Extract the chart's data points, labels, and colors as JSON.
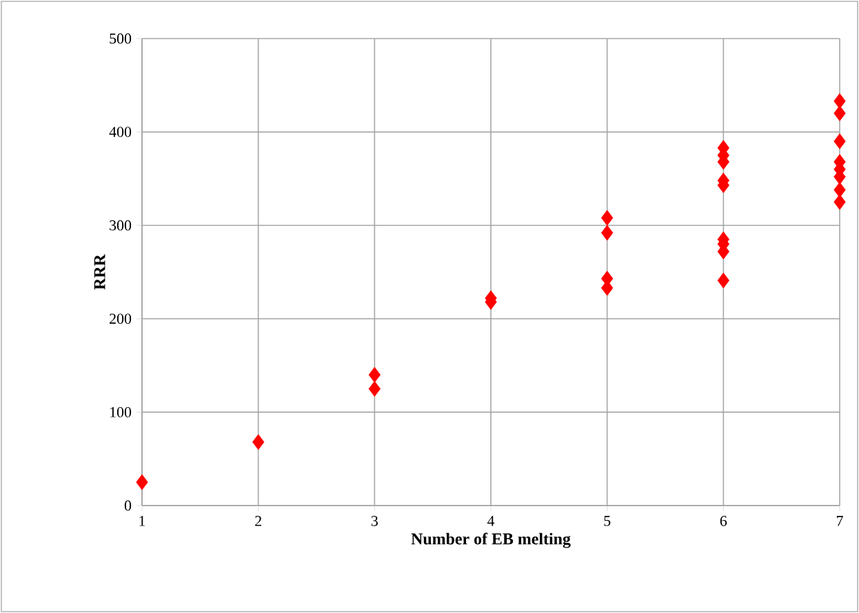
{
  "chart_data": {
    "type": "scatter",
    "xlabel": "Number of EB melting",
    "ylabel": "RRR",
    "x": [
      1,
      2,
      3,
      3,
      4,
      4,
      5,
      5,
      5,
      5,
      6,
      6,
      6,
      6,
      6,
      6,
      6,
      6,
      6,
      7,
      7,
      7,
      7,
      7,
      7,
      7,
      7
    ],
    "values": [
      25,
      68,
      140,
      125,
      222,
      218,
      308,
      292,
      243,
      233,
      383,
      375,
      368,
      348,
      343,
      285,
      280,
      272,
      241,
      433,
      420,
      390,
      368,
      360,
      352,
      338,
      325
    ],
    "color": "#ff0000",
    "marker": "diamond",
    "grid": true,
    "xlim": [
      1,
      7
    ],
    "xticks": [
      1,
      2,
      3,
      4,
      5,
      6,
      7
    ],
    "ylim": [
      0,
      500
    ],
    "yticks": [
      0,
      100,
      200,
      300,
      400,
      500
    ]
  }
}
